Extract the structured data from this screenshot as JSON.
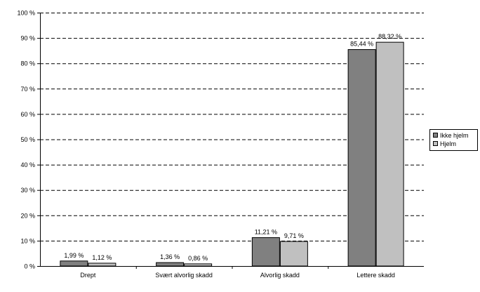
{
  "chart_data": {
    "type": "bar",
    "categories": [
      "Drept",
      "Svært alvorlig skadd",
      "Alvorlig skadd",
      "Lettere skadd"
    ],
    "series": [
      {
        "name": "Ikke hjelm",
        "values": [
          1.99,
          1.36,
          11.21,
          85.44
        ],
        "labels": [
          "1,99 %",
          "1,36 %",
          "11,21 %",
          "85,44 %"
        ],
        "color": "#808080"
      },
      {
        "name": "Hjelm",
        "values": [
          1.12,
          0.86,
          9.71,
          88.32
        ],
        "labels": [
          "1,12 %",
          "0,86 %",
          "9,71 %",
          "88,32 %"
        ],
        "color": "#c0c0c0"
      }
    ],
    "ylim": [
      0,
      100
    ],
    "yticks": [
      0,
      10,
      20,
      30,
      40,
      50,
      60,
      70,
      80,
      90,
      100
    ],
    "ytick_labels": [
      "0 %",
      "10 %",
      "20 %",
      "30 %",
      "40 %",
      "50 %",
      "60 %",
      "70 %",
      "80 %",
      "90 %",
      "100 %"
    ],
    "grid": "dashed horizontal",
    "legend_position": "right"
  }
}
